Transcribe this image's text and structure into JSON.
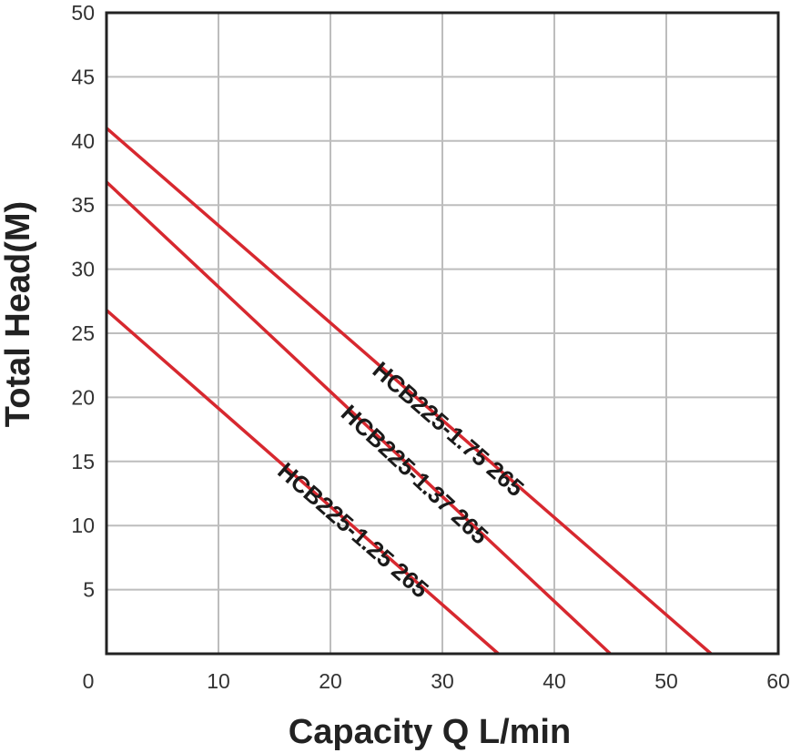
{
  "chart_data": {
    "type": "line",
    "title": "",
    "xlabel": "Capacity Q L/min",
    "ylabel": "Total Head(M)",
    "xlim": [
      0,
      60
    ],
    "ylim": [
      0,
      50
    ],
    "x_ticks": [
      "0",
      "10",
      "20",
      "30",
      "40",
      "50",
      "60"
    ],
    "y_ticks": [
      "5",
      "10",
      "15",
      "20",
      "25",
      "30",
      "35",
      "40",
      "45",
      "50"
    ],
    "grid": true,
    "line_color": "#d7282f",
    "grid_color": "#bdbdbd",
    "series": [
      {
        "name": "HCB225-1.75 265",
        "x": [
          0,
          54
        ],
        "y": [
          41,
          0
        ]
      },
      {
        "name": "HCB225-1.37 265",
        "x": [
          0,
          45
        ],
        "y": [
          36.8,
          0
        ]
      },
      {
        "name": "HCB225-1.25 265",
        "x": [
          0,
          35
        ],
        "y": [
          26.8,
          0
        ]
      }
    ]
  }
}
